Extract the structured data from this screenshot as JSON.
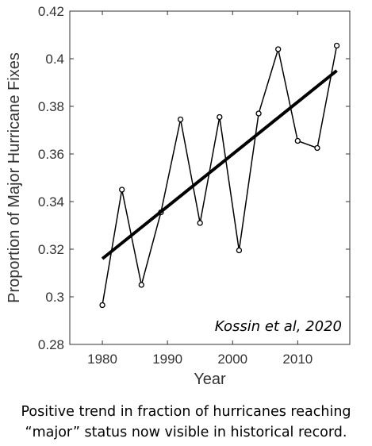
{
  "chart_data": {
    "type": "line",
    "title": "",
    "xlabel": "Year",
    "ylabel": "Proportion of Major Hurricane Fixes",
    "xlim": [
      1975,
      2018
    ],
    "ylim": [
      0.28,
      0.42
    ],
    "x_ticks": [
      1980,
      1990,
      2000,
      2010
    ],
    "x_tick_labels": [
      "1980",
      "1990",
      "2000",
      "2010"
    ],
    "y_ticks": [
      0.28,
      0.3,
      0.32,
      0.34,
      0.36,
      0.38,
      0.4,
      0.42
    ],
    "y_tick_labels": [
      "0.28",
      "0.3",
      "0.32",
      "0.34",
      "0.36",
      "0.38",
      "0.4",
      "0.42"
    ],
    "grid": false,
    "series": [
      {
        "x": [
          1980,
          1983,
          1986,
          1989,
          1992,
          1995,
          1998,
          2001,
          2004,
          2007,
          2010,
          2013,
          2016
        ],
        "y": [
          0.2965,
          0.345,
          0.305,
          0.3355,
          0.3745,
          0.331,
          0.3755,
          0.3195,
          0.377,
          0.404,
          0.3655,
          0.3625,
          0.4055
        ],
        "color": "#000000",
        "marker": "circle"
      },
      {
        "x": [
          1980,
          2016
        ],
        "y": [
          0.316,
          0.395
        ],
        "color": "#000000",
        "style": "trend-line"
      }
    ],
    "annotation": "Kossin et al, 2020"
  },
  "caption": {
    "line1": "Positive trend in fraction of hurricanes reaching",
    "line2": "“major” status now visible in historical record."
  }
}
